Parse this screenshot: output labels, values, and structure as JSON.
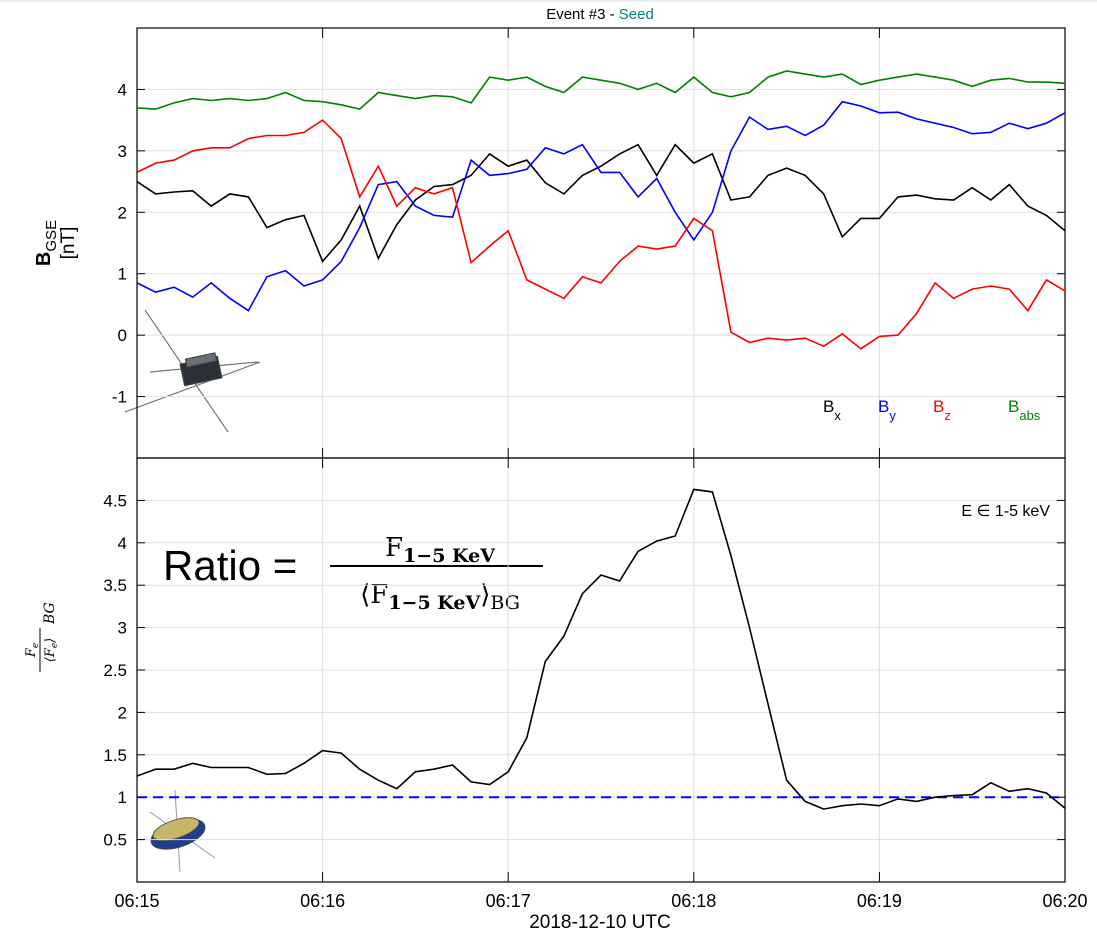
{
  "chart_data": [
    {
      "type": "line",
      "title": "Event #3 -",
      "title_tag": "Seed",
      "title_tag_color": "#008080",
      "ylabel": {
        "main": "B",
        "sub": "GSE",
        "unit": "[nT]"
      },
      "xlim": [
        15,
        20
      ],
      "xticks": [
        15,
        16,
        17,
        18,
        19,
        20
      ],
      "ylim": [
        -2,
        5
      ],
      "yticks": [
        4,
        3,
        2,
        1,
        0,
        -1
      ],
      "grid": true,
      "legend": "lower right",
      "x": [
        15,
        15.1,
        15.2,
        15.3,
        15.4,
        15.5,
        15.6,
        15.7,
        15.8,
        15.9,
        16,
        16.1,
        16.2,
        16.3,
        16.4,
        16.5,
        16.6,
        16.7,
        16.8,
        16.9,
        17,
        17.1,
        17.2,
        17.3,
        17.4,
        17.5,
        17.6,
        17.7,
        17.8,
        17.9,
        18,
        18.1,
        18.2,
        18.3,
        18.4,
        18.5,
        18.6,
        18.7,
        18.8,
        18.9,
        19,
        19.1,
        19.2,
        19.3,
        19.4,
        19.5,
        19.6,
        19.7,
        19.8,
        19.9,
        20
      ],
      "series": [
        {
          "name": "B",
          "subscript": "x",
          "color": "#000000",
          "values": [
            2.5,
            2.3,
            2.33,
            2.35,
            2.1,
            2.3,
            2.25,
            1.75,
            1.88,
            1.95,
            1.2,
            1.55,
            2.1,
            1.25,
            1.8,
            2.2,
            2.42,
            2.45,
            2.6,
            2.95,
            2.75,
            2.85,
            2.48,
            2.3,
            2.6,
            2.75,
            2.95,
            3.1,
            2.6,
            3.1,
            2.8,
            2.95,
            2.2,
            2.25,
            2.6,
            2.72,
            2.6,
            2.3,
            1.6,
            1.9,
            1.9,
            2.25,
            2.28,
            2.22,
            2.2,
            2.4,
            2.2,
            2.45,
            2.1,
            1.95,
            1.7
          ]
        },
        {
          "name": "B",
          "subscript": "y",
          "color": "#0000ff",
          "values": [
            0.85,
            0.7,
            0.78,
            0.62,
            0.85,
            0.6,
            0.4,
            0.95,
            1.05,
            0.8,
            0.9,
            1.2,
            1.75,
            2.45,
            2.5,
            2.1,
            1.95,
            1.92,
            2.85,
            2.6,
            2.63,
            2.7,
            3.05,
            2.95,
            3.1,
            2.65,
            2.65,
            2.25,
            2.55,
            2.0,
            1.55,
            2.0,
            3.0,
            3.55,
            3.35,
            3.4,
            3.25,
            3.42,
            3.8,
            3.73,
            3.62,
            3.63,
            3.52,
            3.45,
            3.38,
            3.28,
            3.3,
            3.45,
            3.36,
            3.45,
            3.62
          ]
        },
        {
          "name": "B",
          "subscript": "z",
          "color": "#ff0000",
          "values": [
            2.65,
            2.8,
            2.85,
            3.0,
            3.05,
            3.05,
            3.2,
            3.25,
            3.25,
            3.3,
            3.5,
            3.2,
            2.25,
            2.75,
            2.1,
            2.4,
            2.3,
            2.4,
            1.18,
            1.45,
            1.7,
            0.9,
            0.75,
            0.6,
            0.95,
            0.85,
            1.2,
            1.45,
            1.4,
            1.45,
            1.9,
            1.7,
            0.05,
            -0.12,
            -0.05,
            -0.08,
            -0.05,
            -0.18,
            0.02,
            -0.22,
            -0.02,
            0.0,
            0.35,
            0.85,
            0.6,
            0.75,
            0.8,
            0.75,
            0.4,
            0.9,
            0.72
          ]
        },
        {
          "name": "B",
          "subscript": "abs",
          "color": "#008000",
          "values": [
            3.7,
            3.68,
            3.78,
            3.85,
            3.82,
            3.85,
            3.82,
            3.85,
            3.95,
            3.82,
            3.8,
            3.75,
            3.68,
            3.95,
            3.9,
            3.85,
            3.9,
            3.88,
            3.78,
            4.2,
            4.15,
            4.2,
            4.05,
            3.95,
            4.2,
            4.15,
            4.1,
            4.0,
            4.1,
            3.95,
            4.2,
            3.95,
            3.88,
            3.95,
            4.2,
            4.3,
            4.25,
            4.2,
            4.25,
            4.08,
            4.15,
            4.2,
            4.25,
            4.2,
            4.15,
            4.05,
            4.15,
            4.18,
            4.12,
            4.12,
            4.1
          ]
        }
      ]
    },
    {
      "type": "line",
      "annotation": "E ∈ 1-5 keV",
      "formula": {
        "lhs": "Ratio =",
        "num": "F",
        "num_sub": "1−5 KeV",
        "den": "⟨F",
        "den_sub": "1−5 KeV",
        "den_close": "⟩",
        "den_tail": "BG"
      },
      "ylabel": {
        "num": "F",
        "num_sub": "e",
        "den": "⟨F",
        "den_sub": "e",
        "den_close": "⟩",
        "tail": "BG"
      },
      "xlabel": "2018-12-10 UTC",
      "xlim": [
        15,
        20
      ],
      "xticks": [
        {
          "value": 15,
          "label": "06:15"
        },
        {
          "value": 16,
          "label": "06:16"
        },
        {
          "value": 17,
          "label": "06:17"
        },
        {
          "value": 18,
          "label": "06:18"
        },
        {
          "value": 19,
          "label": "06:19"
        },
        {
          "value": 20,
          "label": "06:20"
        }
      ],
      "ylim": [
        0,
        5
      ],
      "yticks": [
        4.5,
        4,
        3.5,
        3,
        2.5,
        2,
        1.5,
        1,
        0.5
      ],
      "grid": true,
      "hline": {
        "value": 1,
        "color": "#0000ff",
        "style": "dashed"
      },
      "x": [
        15,
        15.1,
        15.2,
        15.3,
        15.4,
        15.5,
        15.6,
        15.7,
        15.8,
        15.9,
        16,
        16.1,
        16.2,
        16.3,
        16.4,
        16.5,
        16.6,
        16.7,
        16.8,
        16.9,
        17,
        17.1,
        17.2,
        17.3,
        17.4,
        17.5,
        17.6,
        17.7,
        17.8,
        17.9,
        18,
        18.1,
        18.2,
        18.3,
        18.4,
        18.5,
        18.6,
        18.7,
        18.8,
        18.9,
        19,
        19.1,
        19.2,
        19.3,
        19.4,
        19.5,
        19.6,
        19.7,
        19.8,
        19.9,
        20
      ],
      "series": [
        {
          "color": "#000000",
          "values": [
            1.25,
            1.33,
            1.33,
            1.4,
            1.35,
            1.35,
            1.35,
            1.27,
            1.28,
            1.4,
            1.55,
            1.52,
            1.33,
            1.2,
            1.1,
            1.3,
            1.33,
            1.38,
            1.18,
            1.15,
            1.3,
            1.7,
            2.6,
            2.9,
            3.4,
            3.62,
            3.55,
            3.9,
            4.02,
            4.08,
            4.63,
            4.6,
            3.85,
            3.0,
            2.1,
            1.2,
            0.95,
            0.86,
            0.9,
            0.92,
            0.9,
            0.98,
            0.95,
            1.0,
            1.02,
            1.03,
            1.17,
            1.07,
            1.1,
            1.05,
            0.87
          ]
        }
      ]
    }
  ]
}
